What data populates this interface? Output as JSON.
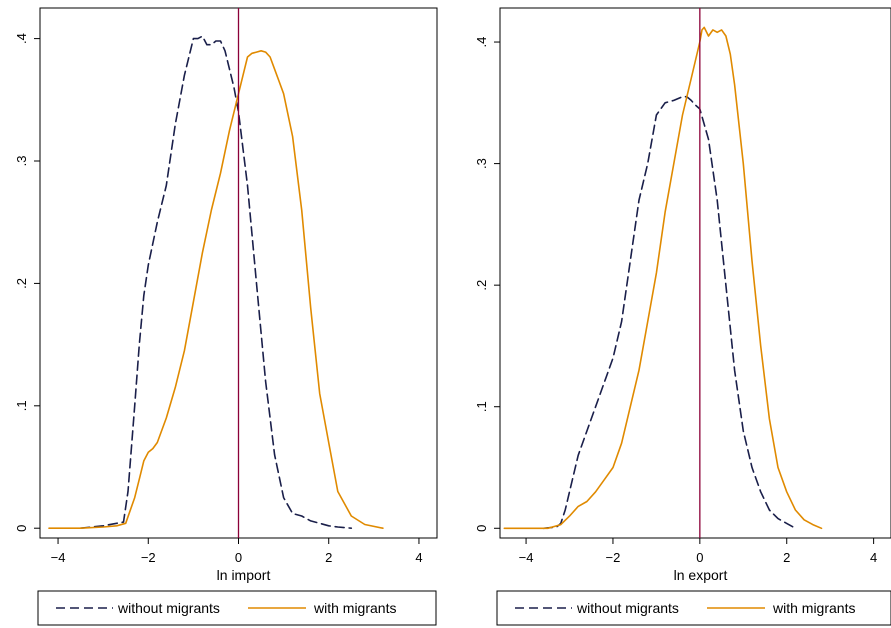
{
  "colors": {
    "without": "#1a1f4a",
    "with": "#e08a00",
    "refline": "#8b0038"
  },
  "chart_data": [
    {
      "type": "line",
      "xlabel": "ln import",
      "ylabel": "",
      "xlim": [
        -4.4,
        4.4
      ],
      "ylim": [
        -0.008,
        0.425
      ],
      "xticks": [
        -4,
        -2,
        0,
        2,
        4
      ],
      "xtick_labels": [
        "−4",
        "−2",
        "0",
        "2",
        "4"
      ],
      "yticks": [
        0,
        0.1,
        0.2,
        0.3,
        0.4
      ],
      "ytick_labels": [
        "0",
        ".1",
        ".2",
        ".3",
        ".4"
      ],
      "reference_line_x": 0,
      "legend": [
        "without migrants",
        "with migrants"
      ],
      "series": [
        {
          "name": "without migrants",
          "style": "dashed",
          "x": [
            -3.5,
            -3.0,
            -2.7,
            -2.55,
            -2.45,
            -2.3,
            -2.2,
            -2.1,
            -2.0,
            -1.8,
            -1.6,
            -1.4,
            -1.2,
            -1.1,
            -1.0,
            -0.9,
            -0.8,
            -0.7,
            -0.6,
            -0.5,
            -0.4,
            -0.3,
            -0.2,
            -0.1,
            0.0,
            0.2,
            0.4,
            0.6,
            0.8,
            1.0,
            1.2,
            1.4,
            1.6,
            1.8,
            2.0,
            2.2,
            2.5
          ],
          "values": [
            0.0,
            0.002,
            0.004,
            0.005,
            0.03,
            0.1,
            0.15,
            0.19,
            0.215,
            0.25,
            0.28,
            0.33,
            0.37,
            0.385,
            0.4,
            0.4,
            0.402,
            0.395,
            0.395,
            0.398,
            0.398,
            0.39,
            0.375,
            0.36,
            0.34,
            0.28,
            0.2,
            0.12,
            0.06,
            0.025,
            0.012,
            0.01,
            0.006,
            0.004,
            0.002,
            0.001,
            0.0
          ]
        },
        {
          "name": "with migrants",
          "style": "solid",
          "x": [
            -4.2,
            -3.5,
            -3.0,
            -2.7,
            -2.5,
            -2.3,
            -2.2,
            -2.1,
            -2.0,
            -1.9,
            -1.8,
            -1.6,
            -1.4,
            -1.2,
            -1.0,
            -0.8,
            -0.6,
            -0.4,
            -0.2,
            0.0,
            0.1,
            0.2,
            0.3,
            0.4,
            0.5,
            0.6,
            0.7,
            0.8,
            0.9,
            1.0,
            1.2,
            1.4,
            1.6,
            1.8,
            2.0,
            2.2,
            2.5,
            2.8,
            3.2
          ],
          "values": [
            0.0,
            0.0,
            0.001,
            0.002,
            0.004,
            0.025,
            0.04,
            0.055,
            0.062,
            0.065,
            0.07,
            0.09,
            0.115,
            0.145,
            0.185,
            0.225,
            0.26,
            0.29,
            0.325,
            0.355,
            0.37,
            0.385,
            0.388,
            0.389,
            0.39,
            0.389,
            0.385,
            0.375,
            0.365,
            0.355,
            0.32,
            0.26,
            0.18,
            0.11,
            0.07,
            0.03,
            0.01,
            0.003,
            0.0
          ]
        }
      ]
    },
    {
      "type": "line",
      "xlabel": "ln export",
      "ylabel": "",
      "xlim": [
        -4.6,
        4.4
      ],
      "ylim": [
        -0.008,
        0.428
      ],
      "xticks": [
        -4,
        -2,
        0,
        2,
        4
      ],
      "xtick_labels": [
        "−4",
        "−2",
        "0",
        "2",
        "4"
      ],
      "yticks": [
        0,
        0.1,
        0.2,
        0.3,
        0.4
      ],
      "ytick_labels": [
        "0",
        ".1",
        ".2",
        ".3",
        ".4"
      ],
      "reference_line_x": 0,
      "legend": [
        "without migrants",
        "with migrants"
      ],
      "series": [
        {
          "name": "without migrants",
          "style": "dashed",
          "x": [
            -3.6,
            -3.3,
            -3.2,
            -3.1,
            -3.0,
            -2.8,
            -2.6,
            -2.4,
            -2.2,
            -2.0,
            -1.8,
            -1.6,
            -1.4,
            -1.2,
            -1.0,
            -0.8,
            -0.6,
            -0.4,
            -0.3,
            -0.2,
            -0.1,
            0.0,
            0.2,
            0.4,
            0.6,
            0.8,
            1.0,
            1.2,
            1.4,
            1.6,
            1.8,
            2.0,
            2.2
          ],
          "values": [
            0.0,
            0.001,
            0.004,
            0.015,
            0.03,
            0.06,
            0.08,
            0.1,
            0.12,
            0.14,
            0.17,
            0.22,
            0.27,
            0.3,
            0.34,
            0.35,
            0.352,
            0.355,
            0.355,
            0.352,
            0.348,
            0.345,
            0.32,
            0.27,
            0.2,
            0.13,
            0.08,
            0.05,
            0.03,
            0.015,
            0.008,
            0.004,
            0.0
          ]
        },
        {
          "name": "with migrants",
          "style": "solid",
          "x": [
            -4.5,
            -3.5,
            -3.2,
            -3.0,
            -2.8,
            -2.6,
            -2.4,
            -2.2,
            -2.0,
            -1.8,
            -1.6,
            -1.4,
            -1.2,
            -1.0,
            -0.8,
            -0.6,
            -0.4,
            -0.2,
            0.0,
            0.05,
            0.1,
            0.2,
            0.3,
            0.4,
            0.5,
            0.6,
            0.7,
            0.8,
            1.0,
            1.2,
            1.4,
            1.6,
            1.8,
            2.0,
            2.2,
            2.4,
            2.6,
            2.8
          ],
          "values": [
            0.0,
            0.0,
            0.003,
            0.01,
            0.018,
            0.022,
            0.03,
            0.04,
            0.05,
            0.07,
            0.1,
            0.13,
            0.17,
            0.21,
            0.26,
            0.3,
            0.34,
            0.37,
            0.4,
            0.41,
            0.412,
            0.405,
            0.41,
            0.408,
            0.41,
            0.405,
            0.39,
            0.365,
            0.3,
            0.22,
            0.15,
            0.09,
            0.05,
            0.03,
            0.015,
            0.007,
            0.003,
            0.0
          ]
        }
      ]
    }
  ]
}
